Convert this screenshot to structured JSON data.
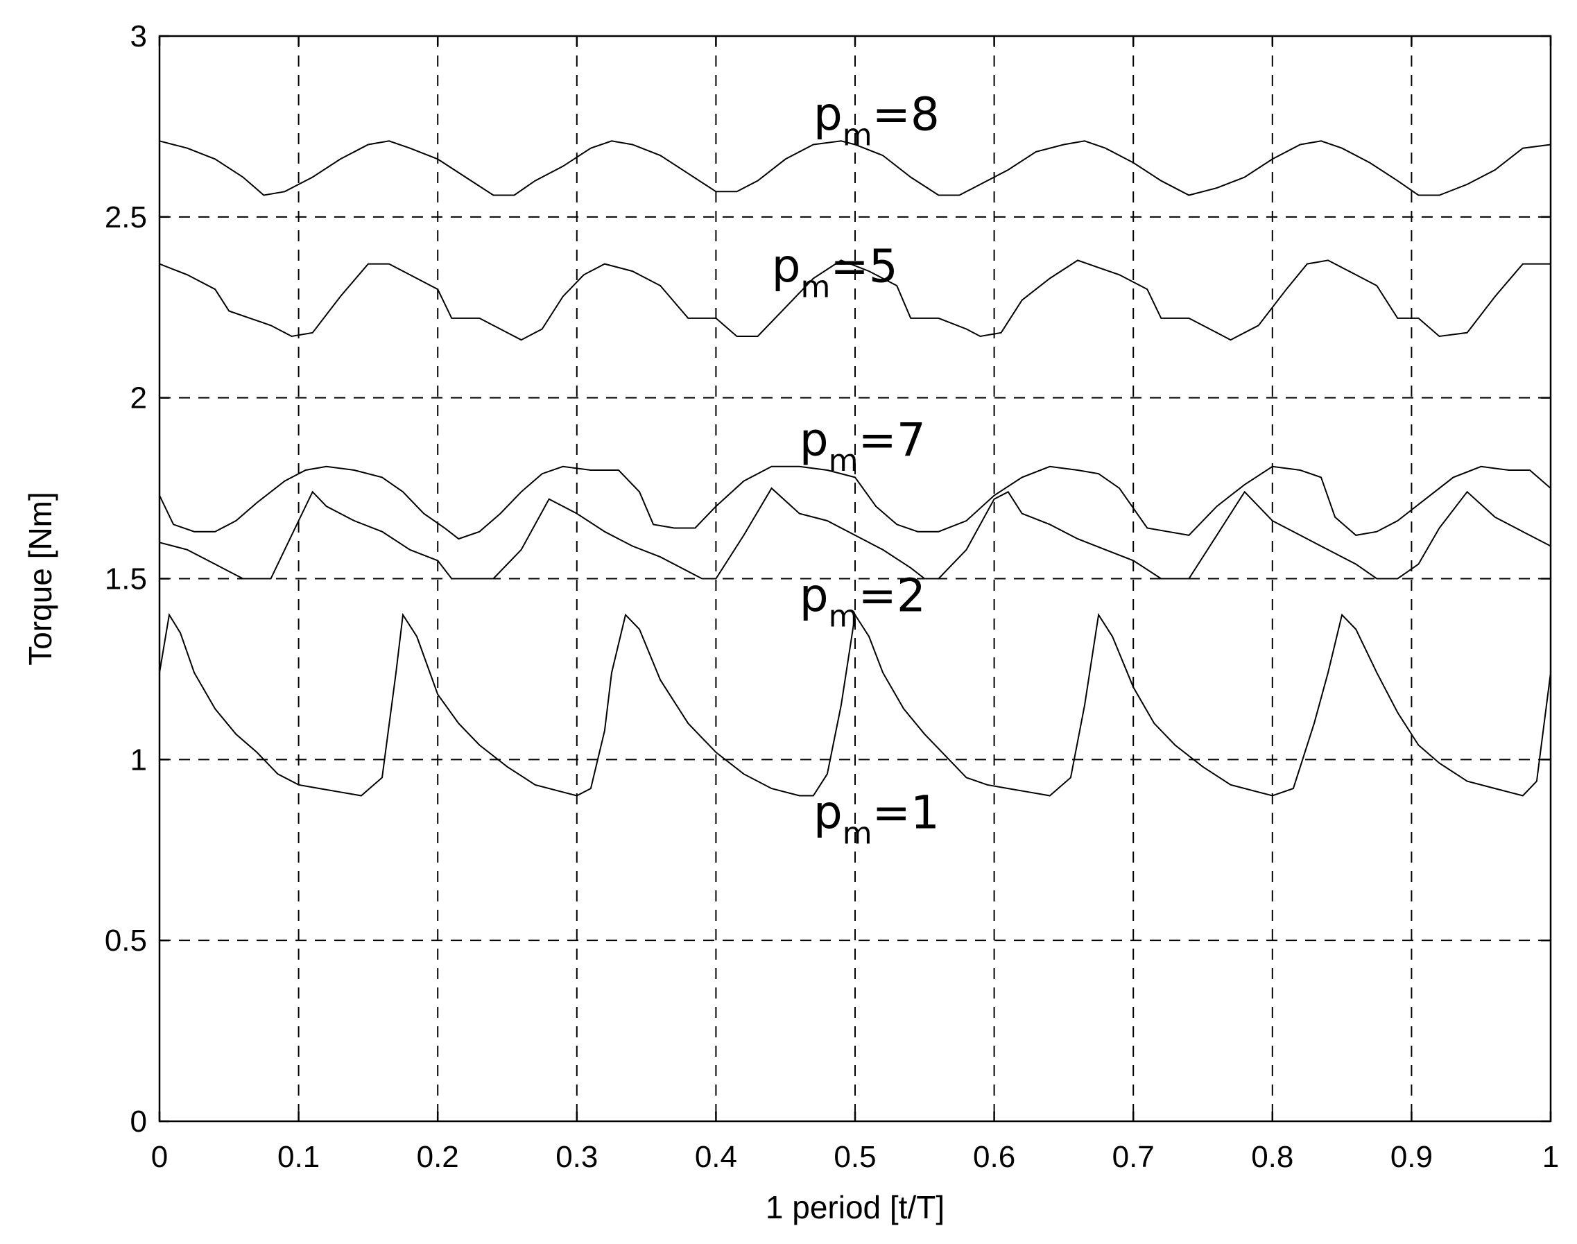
{
  "chart_data": {
    "type": "line",
    "title": "",
    "xlabel": "1 period [t/T]",
    "ylabel": "Torque [Nm]",
    "xlim": [
      0,
      1
    ],
    "ylim": [
      0,
      3
    ],
    "xticks": [
      0,
      0.1,
      0.2,
      0.3,
      0.4,
      0.5,
      0.6,
      0.7,
      0.8,
      0.9,
      1
    ],
    "xtick_labels": [
      "0",
      "0.1",
      "0.2",
      "0.3",
      "0.4",
      "0.5",
      "0.6",
      "0.7",
      "0.8",
      "0.9",
      "1"
    ],
    "yticks": [
      0,
      0.5,
      1,
      1.5,
      2,
      2.5,
      3
    ],
    "ytick_labels": [
      "0",
      "0.5",
      "1",
      "1.5",
      "2",
      "2.5",
      "3"
    ],
    "grid": true,
    "line_color": "#000000",
    "series": [
      {
        "name": "pm=8",
        "x": [
          0,
          0.02,
          0.04,
          0.06,
          0.075,
          0.09,
          0.11,
          0.13,
          0.15,
          0.165,
          0.18,
          0.2,
          0.22,
          0.24,
          0.255,
          0.27,
          0.29,
          0.31,
          0.325,
          0.34,
          0.36,
          0.38,
          0.4,
          0.415,
          0.43,
          0.45,
          0.47,
          0.49,
          0.5,
          0.52,
          0.54,
          0.56,
          0.575,
          0.59,
          0.61,
          0.63,
          0.65,
          0.665,
          0.68,
          0.7,
          0.72,
          0.74,
          0.76,
          0.78,
          0.8,
          0.82,
          0.835,
          0.85,
          0.87,
          0.89,
          0.905,
          0.92,
          0.94,
          0.96,
          0.98,
          1
        ],
        "y": [
          2.71,
          2.69,
          2.66,
          2.61,
          2.56,
          2.57,
          2.61,
          2.66,
          2.7,
          2.71,
          2.69,
          2.66,
          2.61,
          2.56,
          2.56,
          2.6,
          2.64,
          2.69,
          2.71,
          2.7,
          2.67,
          2.62,
          2.57,
          2.57,
          2.6,
          2.66,
          2.7,
          2.71,
          2.7,
          2.67,
          2.61,
          2.56,
          2.56,
          2.59,
          2.63,
          2.68,
          2.7,
          2.71,
          2.69,
          2.65,
          2.6,
          2.56,
          2.58,
          2.61,
          2.66,
          2.7,
          2.71,
          2.69,
          2.65,
          2.6,
          2.56,
          2.56,
          2.59,
          2.63,
          2.69,
          2.7
        ]
      },
      {
        "name": "pm=5",
        "x": [
          0,
          0.02,
          0.04,
          0.05,
          0.065,
          0.08,
          0.095,
          0.11,
          0.13,
          0.15,
          0.165,
          0.18,
          0.2,
          0.21,
          0.23,
          0.25,
          0.26,
          0.275,
          0.29,
          0.305,
          0.32,
          0.34,
          0.36,
          0.38,
          0.4,
          0.415,
          0.43,
          0.45,
          0.47,
          0.49,
          0.51,
          0.53,
          0.54,
          0.56,
          0.58,
          0.59,
          0.605,
          0.62,
          0.64,
          0.66,
          0.675,
          0.69,
          0.71,
          0.72,
          0.74,
          0.76,
          0.77,
          0.79,
          0.81,
          0.825,
          0.84,
          0.86,
          0.875,
          0.89,
          0.905,
          0.92,
          0.94,
          0.96,
          0.98,
          1
        ],
        "y": [
          2.37,
          2.34,
          2.3,
          2.24,
          2.22,
          2.2,
          2.17,
          2.18,
          2.28,
          2.37,
          2.37,
          2.34,
          2.3,
          2.22,
          2.22,
          2.18,
          2.16,
          2.19,
          2.28,
          2.34,
          2.37,
          2.35,
          2.31,
          2.22,
          2.22,
          2.17,
          2.17,
          2.25,
          2.33,
          2.38,
          2.35,
          2.31,
          2.22,
          2.22,
          2.19,
          2.17,
          2.18,
          2.27,
          2.33,
          2.38,
          2.36,
          2.34,
          2.3,
          2.22,
          2.22,
          2.18,
          2.16,
          2.2,
          2.3,
          2.37,
          2.38,
          2.34,
          2.31,
          2.22,
          2.22,
          2.17,
          2.18,
          2.28,
          2.37,
          2.37
        ]
      },
      {
        "name": "pm=7",
        "x": [
          0,
          0.01,
          0.025,
          0.04,
          0.055,
          0.07,
          0.09,
          0.105,
          0.12,
          0.14,
          0.16,
          0.175,
          0.19,
          0.205,
          0.215,
          0.23,
          0.245,
          0.26,
          0.275,
          0.29,
          0.31,
          0.33,
          0.345,
          0.355,
          0.37,
          0.385,
          0.4,
          0.42,
          0.44,
          0.46,
          0.48,
          0.5,
          0.515,
          0.53,
          0.545,
          0.56,
          0.58,
          0.6,
          0.62,
          0.64,
          0.66,
          0.675,
          0.69,
          0.71,
          0.725,
          0.74,
          0.76,
          0.78,
          0.8,
          0.82,
          0.835,
          0.845,
          0.86,
          0.875,
          0.89,
          0.91,
          0.93,
          0.95,
          0.97,
          0.985,
          1
        ],
        "y": [
          1.73,
          1.65,
          1.63,
          1.63,
          1.66,
          1.71,
          1.77,
          1.8,
          1.81,
          1.8,
          1.78,
          1.74,
          1.68,
          1.64,
          1.61,
          1.63,
          1.68,
          1.74,
          1.79,
          1.81,
          1.8,
          1.8,
          1.74,
          1.65,
          1.64,
          1.64,
          1.7,
          1.77,
          1.81,
          1.81,
          1.8,
          1.78,
          1.7,
          1.65,
          1.63,
          1.63,
          1.66,
          1.73,
          1.78,
          1.81,
          1.8,
          1.79,
          1.75,
          1.64,
          1.63,
          1.62,
          1.7,
          1.76,
          1.81,
          1.8,
          1.78,
          1.67,
          1.62,
          1.63,
          1.66,
          1.72,
          1.78,
          1.81,
          1.8,
          1.8,
          1.75
        ]
      },
      {
        "name": "pm=2",
        "x": [
          0,
          0.02,
          0.04,
          0.05,
          0.06,
          0.08,
          0.1,
          0.11,
          0.12,
          0.14,
          0.16,
          0.18,
          0.2,
          0.21,
          0.22,
          0.24,
          0.26,
          0.28,
          0.3,
          0.32,
          0.34,
          0.36,
          0.375,
          0.39,
          0.4,
          0.42,
          0.44,
          0.46,
          0.48,
          0.5,
          0.52,
          0.54,
          0.55,
          0.56,
          0.58,
          0.6,
          0.61,
          0.62,
          0.64,
          0.66,
          0.68,
          0.7,
          0.72,
          0.73,
          0.74,
          0.76,
          0.78,
          0.8,
          0.82,
          0.84,
          0.86,
          0.875,
          0.89,
          0.905,
          0.92,
          0.94,
          0.96,
          0.98,
          1
        ],
        "y": [
          1.6,
          1.58,
          1.54,
          1.52,
          1.5,
          1.5,
          1.66,
          1.74,
          1.7,
          1.66,
          1.63,
          1.58,
          1.55,
          1.5,
          1.5,
          1.5,
          1.58,
          1.72,
          1.68,
          1.63,
          1.59,
          1.56,
          1.53,
          1.5,
          1.5,
          1.62,
          1.75,
          1.68,
          1.66,
          1.62,
          1.58,
          1.53,
          1.5,
          1.5,
          1.58,
          1.72,
          1.74,
          1.68,
          1.65,
          1.61,
          1.58,
          1.55,
          1.5,
          1.5,
          1.5,
          1.62,
          1.74,
          1.66,
          1.62,
          1.58,
          1.54,
          1.5,
          1.5,
          1.54,
          1.64,
          1.74,
          1.67,
          1.63,
          1.59
        ]
      },
      {
        "name": "pm=1",
        "x": [
          0,
          0.007,
          0.015,
          0.025,
          0.04,
          0.055,
          0.07,
          0.085,
          0.1,
          0.115,
          0.13,
          0.145,
          0.16,
          0.17,
          0.175,
          0.185,
          0.2,
          0.215,
          0.23,
          0.25,
          0.27,
          0.29,
          0.3,
          0.31,
          0.32,
          0.325,
          0.335,
          0.345,
          0.36,
          0.38,
          0.4,
          0.42,
          0.44,
          0.46,
          0.47,
          0.48,
          0.49,
          0.5,
          0.51,
          0.52,
          0.535,
          0.55,
          0.565,
          0.58,
          0.595,
          0.61,
          0.625,
          0.64,
          0.655,
          0.665,
          0.675,
          0.685,
          0.7,
          0.715,
          0.73,
          0.75,
          0.77,
          0.79,
          0.8,
          0.815,
          0.83,
          0.84,
          0.85,
          0.86,
          0.875,
          0.89,
          0.905,
          0.92,
          0.94,
          0.96,
          0.97,
          0.98,
          0.99,
          1
        ],
        "y": [
          1.24,
          1.4,
          1.35,
          1.24,
          1.14,
          1.07,
          1.02,
          0.96,
          0.93,
          0.92,
          0.91,
          0.9,
          0.95,
          1.24,
          1.4,
          1.34,
          1.18,
          1.1,
          1.04,
          0.98,
          0.93,
          0.91,
          0.9,
          0.92,
          1.08,
          1.24,
          1.4,
          1.36,
          1.22,
          1.1,
          1.02,
          0.96,
          0.92,
          0.9,
          0.9,
          0.96,
          1.15,
          1.4,
          1.34,
          1.24,
          1.14,
          1.07,
          1.01,
          0.95,
          0.93,
          0.92,
          0.91,
          0.9,
          0.95,
          1.15,
          1.4,
          1.34,
          1.2,
          1.1,
          1.04,
          0.98,
          0.93,
          0.91,
          0.9,
          0.92,
          1.1,
          1.24,
          1.4,
          1.36,
          1.24,
          1.13,
          1.04,
          0.99,
          0.94,
          0.92,
          0.91,
          0.9,
          0.94,
          1.24
        ]
      }
    ],
    "annotations": [
      {
        "base": "p",
        "sub": "m",
        "rest": "=8",
        "x": 0.47,
        "y": 2.74
      },
      {
        "base": "p",
        "sub": "m",
        "rest": "=5",
        "x": 0.44,
        "y": 2.32
      },
      {
        "base": "p",
        "sub": "m",
        "rest": "=7",
        "x": 0.46,
        "y": 1.84
      },
      {
        "base": "p",
        "sub": "m",
        "rest": "=2",
        "x": 0.46,
        "y": 1.41
      },
      {
        "base": "p",
        "sub": "m",
        "rest": "=1",
        "x": 0.47,
        "y": 0.81
      }
    ]
  }
}
